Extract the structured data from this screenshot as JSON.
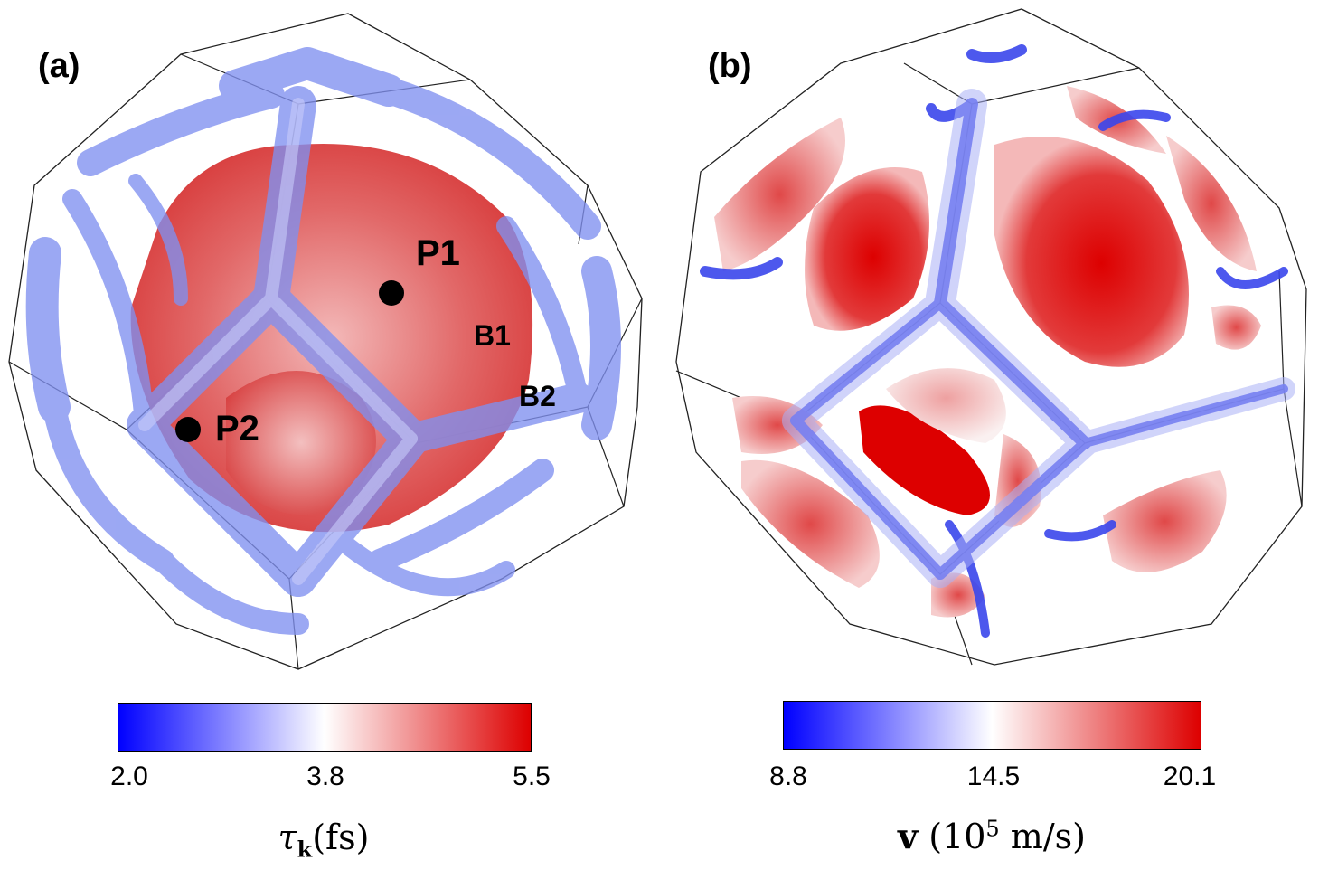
{
  "panel_a": {
    "label": "(a)",
    "points": [
      "P1",
      "P2"
    ],
    "bands": [
      "B1",
      "B2"
    ],
    "colorbar": {
      "ticks": [
        "2.0",
        "3.8",
        "5.5"
      ],
      "title_symbol": "τ",
      "title_subscript": "k",
      "title_unit": "(fs)",
      "colors": {
        "low": "#0000ff",
        "mid": "#ffffff",
        "high": "#dd0000"
      }
    }
  },
  "panel_b": {
    "label": "(b)",
    "colorbar": {
      "ticks": [
        "8.8",
        "14.5",
        "20.1"
      ],
      "title_symbol": "v",
      "title_unit_pre": "(10",
      "title_exp": "5",
      "title_unit_post": " m/s)",
      "colors": {
        "low": "#0000ff",
        "mid": "#ffffff",
        "high": "#dd0000"
      }
    }
  }
}
